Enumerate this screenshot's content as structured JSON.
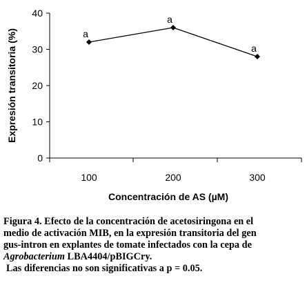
{
  "chart_data": {
    "type": "line",
    "x": [
      "100",
      "200",
      "300"
    ],
    "values": [
      32,
      36,
      28
    ],
    "point_labels": [
      "a",
      "a",
      "a"
    ],
    "xlabel": "Concentración de AS (µM)",
    "ylabel": "Expresión transitoria (%)",
    "ylim": [
      0,
      40
    ],
    "yticks": [
      "0",
      "10",
      "20",
      "30",
      "40"
    ],
    "grid": false,
    "line_color": "#000000",
    "marker": "diamond"
  },
  "caption": {
    "line1": "Figura 4. Efecto de la concentración de acetosiringona en el",
    "line2": "medio de activación MIB, en la expresión transitoria del gen",
    "line3": "gus-intron en explantes de tomate infectados con la cepa de",
    "line4_italic": "Agrobacterium",
    "line4_rest": " LBA4404/pBIGCry.",
    "line5": "Las diferencias no son significativas a p = 0.05."
  }
}
